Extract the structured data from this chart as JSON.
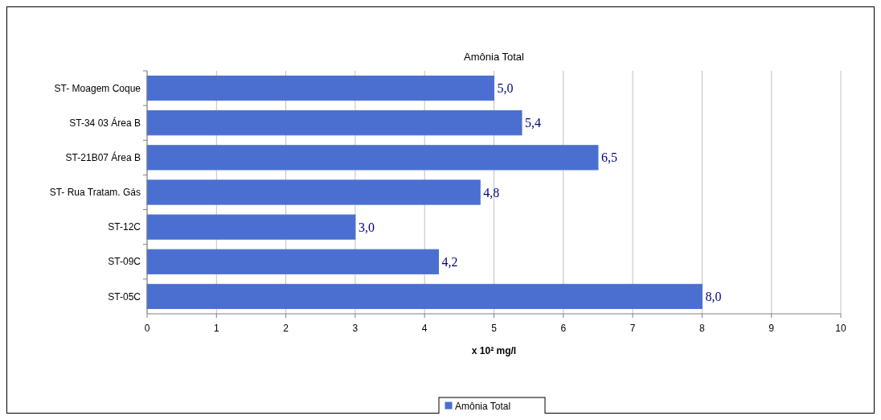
{
  "chart_data": {
    "type": "bar",
    "orientation": "horizontal",
    "title": "Amônia Total",
    "xlabel": "x 10² mg/l",
    "categories": [
      "ST- Moagem Coque",
      "ST-34 03 Área B",
      "ST-21B07 Área B",
      "ST- Rua Tratam. Gás",
      "ST-12C",
      "ST-09C",
      "ST-05C"
    ],
    "series": [
      {
        "name": "Amônia Total",
        "color": "#4a6fd0",
        "values": [
          5.0,
          5.4,
          6.5,
          4.8,
          3.0,
          4.2,
          8.0
        ],
        "value_labels": [
          "5,0",
          "5,4",
          "6,5",
          "4,8",
          "3,0",
          "4,2",
          "8,0"
        ]
      }
    ],
    "xlim": [
      0,
      10
    ],
    "xticks": [
      0,
      1,
      2,
      3,
      4,
      5,
      6,
      7,
      8,
      9,
      10
    ],
    "grid": "x",
    "legend": "bottom"
  }
}
